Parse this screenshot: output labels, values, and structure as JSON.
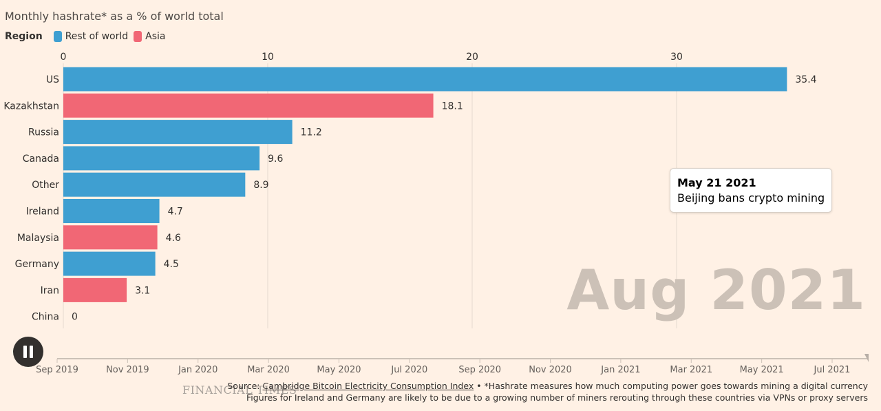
{
  "title": "Monthly hashrate* as a % of world total",
  "legend": {
    "label": "Region",
    "items": [
      {
        "name": "Rest of world",
        "color": "#3f9fd1"
      },
      {
        "name": "Asia",
        "color": "#f16775"
      }
    ]
  },
  "current_period": "Aug 2021",
  "annotation": {
    "date": "May 21 2021",
    "text": "Beijing bans crypto mining"
  },
  "timeline": {
    "labels": [
      "Sep 2019",
      "Nov 2019",
      "Jan 2020",
      "Mar 2020",
      "May 2020",
      "Jul 2020",
      "Sep 2020",
      "Nov 2020",
      "Jan 2021",
      "Mar 2021",
      "May 2021",
      "Jul 2021"
    ],
    "progress": 1.0
  },
  "brand": "FINANCIAL TIMES",
  "source": {
    "prefix": "Source: ",
    "link_text": "Cambridge Bitcoin Electricity Consumption Index",
    "suffix": " • *Hashrate measures how much computing power goes towards mining a digital currency",
    "line2": "Figures for Ireland and Germany are likely to be due to a growing number of miners rerouting through these countries via VPNs or proxy servers"
  },
  "chart_data": {
    "type": "bar",
    "orientation": "horizontal",
    "title": "Monthly hashrate* as a % of world total",
    "categories": [
      "US",
      "Kazakhstan",
      "Russia",
      "Canada",
      "Other",
      "Ireland",
      "Malaysia",
      "Germany",
      "Iran",
      "China"
    ],
    "values": [
      35.4,
      18.1,
      11.2,
      9.6,
      8.9,
      4.7,
      4.6,
      4.5,
      3.1,
      0
    ],
    "value_labels": [
      "35.4",
      "18.1",
      "11.2",
      "9.6",
      "8.9",
      "4.7",
      "4.6",
      "4.5",
      "3.1",
      "0"
    ],
    "region": [
      "Rest of world",
      "Asia",
      "Rest of world",
      "Rest of world",
      "Rest of world",
      "Rest of world",
      "Asia",
      "Rest of world",
      "Asia",
      "Asia"
    ],
    "xticks": [
      0,
      10,
      20,
      30
    ],
    "xlim": [
      0,
      40
    ],
    "grid": true,
    "legend_position": "top-left"
  }
}
